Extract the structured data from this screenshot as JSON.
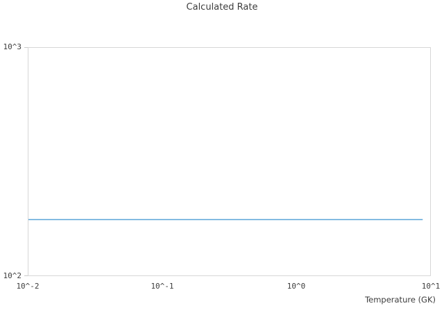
{
  "chart_data": {
    "type": "line",
    "title": "Calculated Rate",
    "xlabel": "Temperature (GK)",
    "ylabel": "",
    "xscale": "log",
    "yscale": "log",
    "xlim": [
      0.01,
      10
    ],
    "ylim": [
      100,
      1000
    ],
    "x_tick_labels": [
      "10^-2",
      "10^-1",
      "10^0",
      "10^1"
    ],
    "y_tick_labels": [
      "10^2",
      "10^3"
    ],
    "grid": false,
    "legend": null,
    "series": [
      {
        "name": "calculated-rate",
        "color": "#58a4d8",
        "x": [
          0.01,
          8.8
        ],
        "y": [
          176,
          176
        ]
      }
    ]
  },
  "colors": {
    "plot_border": "#d6d6d6",
    "tick_mark": "#c9c9c9",
    "text": "#3c3c3c",
    "background": "#ffffff",
    "line": "#58a4d8"
  }
}
